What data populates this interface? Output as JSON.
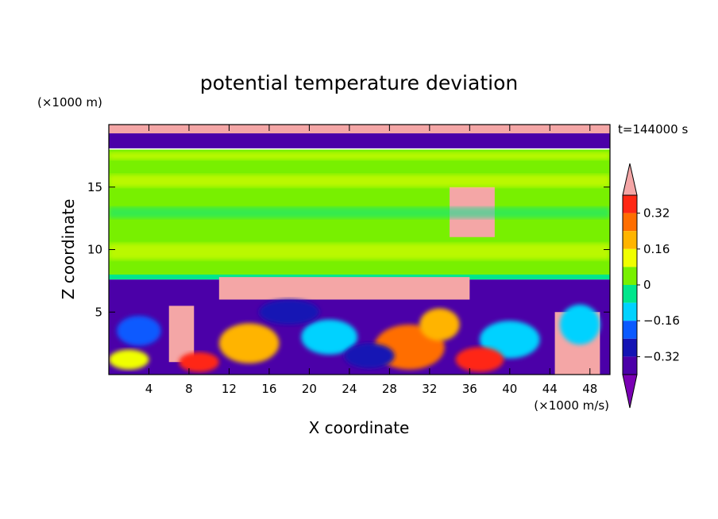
{
  "chart_data": {
    "type": "heatmap",
    "title": "potential temperature deviation",
    "xlabel": "X coordinate",
    "ylabel": "Z coordinate",
    "x_unit": "(×1000 m/s)",
    "y_unit": "(×1000 m)",
    "time_label": "t=144000 s",
    "xlim": [
      0,
      50
    ],
    "ylim": [
      0,
      20
    ],
    "x_ticks": [
      4,
      8,
      12,
      16,
      20,
      24,
      28,
      32,
      36,
      40,
      44,
      48
    ],
    "y_ticks": [
      5,
      10,
      15
    ],
    "colorbar": {
      "levels": [
        -0.4,
        -0.32,
        -0.24,
        -0.16,
        -0.08,
        0,
        0.08,
        0.16,
        0.24,
        0.32,
        0.4
      ],
      "labels": [
        "0.32",
        "0.16",
        "0",
        "−0.16",
        "−0.32"
      ],
      "label_values": [
        0.32,
        0.16,
        0,
        -0.16,
        -0.32
      ],
      "colors": [
        "#7a00b4",
        "#4b00a8",
        "#1414b4",
        "#0a5aff",
        "#00d2ff",
        "#00e68c",
        "#78f000",
        "#f0ff00",
        "#ffb400",
        "#ff6e00",
        "#ff2814",
        "#f4a6a6"
      ]
    },
    "regions": [
      {
        "value": -0.36,
        "x": [
          0,
          50
        ],
        "y": [
          18.1,
          19.3
        ]
      },
      {
        "value": 0.45,
        "x": [
          0,
          50
        ],
        "y": [
          19.3,
          20
        ]
      },
      {
        "value": 0.05,
        "x": [
          0,
          50
        ],
        "y": [
          8,
          18
        ]
      },
      {
        "value": -0.06,
        "x": [
          0,
          50
        ],
        "y": [
          7.6,
          8
        ]
      },
      {
        "value": -0.36,
        "x": [
          0,
          50
        ],
        "y": [
          0,
          7.6
        ]
      },
      {
        "value": 0.45,
        "x": [
          11,
          36
        ],
        "y": [
          6,
          7.8
        ]
      },
      {
        "value": 0.45,
        "x": [
          6,
          8.5
        ],
        "y": [
          1,
          5.5
        ]
      },
      {
        "value": 0.45,
        "x": [
          44.5,
          49
        ],
        "y": [
          0,
          5
        ]
      },
      {
        "value": 0.45,
        "x": [
          34,
          38.5
        ],
        "y": [
          11,
          15
        ]
      }
    ]
  }
}
